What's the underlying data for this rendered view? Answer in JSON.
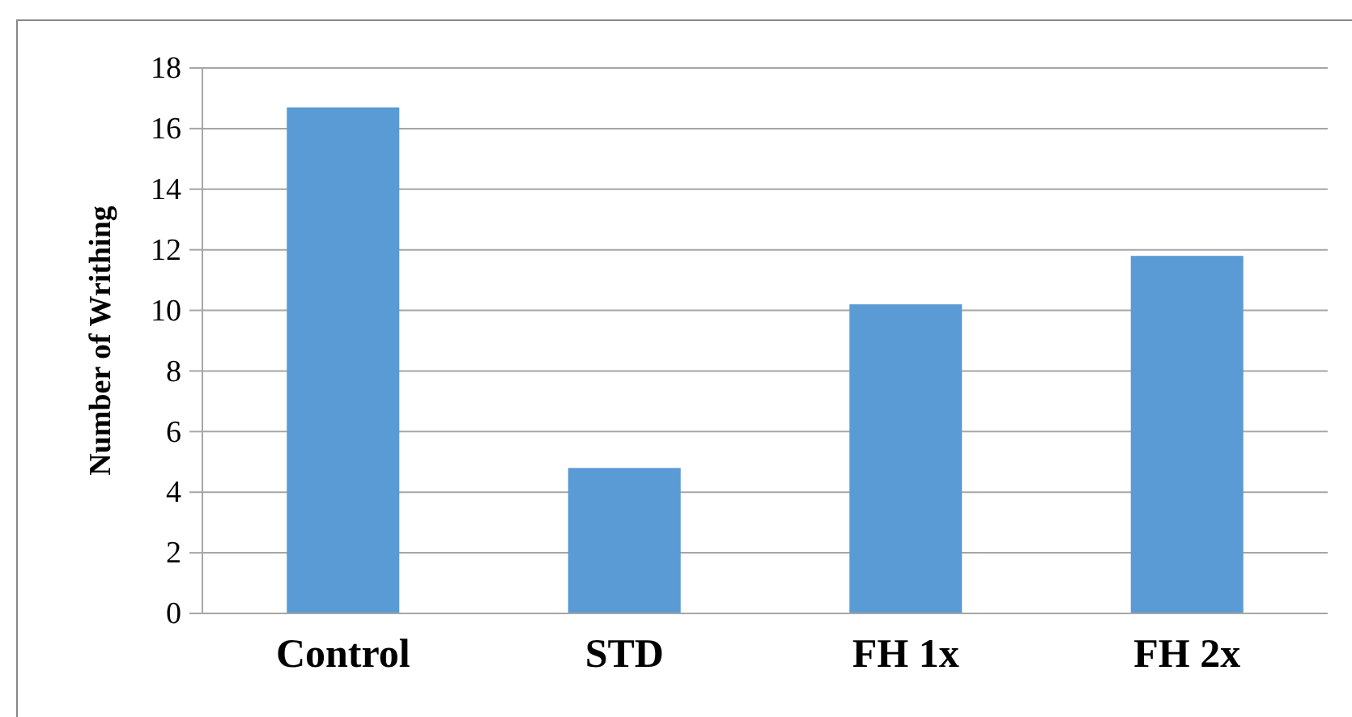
{
  "chart_data": {
    "type": "bar",
    "ylabel": "Number of Writhing",
    "categories": [
      "Control",
      "STD",
      "FH 1x",
      "FH 2x"
    ],
    "values": [
      16.7,
      4.8,
      10.2,
      11.8
    ],
    "color": "#5b9bd5",
    "ylim": [
      0,
      18
    ],
    "yticks": [
      0,
      2,
      4,
      6,
      8,
      10,
      12,
      14,
      16,
      18
    ],
    "grid": "y"
  }
}
